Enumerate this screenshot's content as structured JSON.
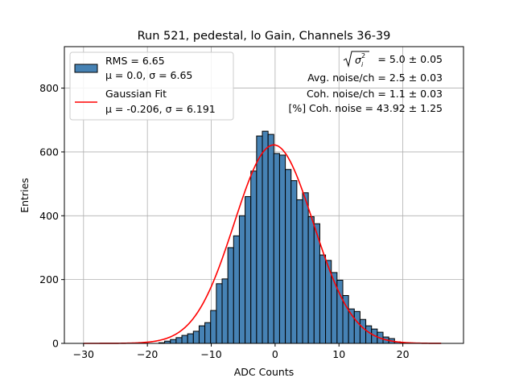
{
  "chart_data": {
    "type": "bar",
    "title": "Run 521, pedestal, lo Gain, Channels 36-39",
    "xlabel": "ADC Counts",
    "ylabel": "Entries",
    "xlim": [
      -33,
      29.5
    ],
    "ylim": [
      0,
      930
    ],
    "grid": true,
    "legend_position": "top-left",
    "x_ticks": [
      -30,
      -20,
      -10,
      0,
      10,
      20
    ],
    "y_ticks": [
      0,
      200,
      400,
      600,
      800
    ],
    "histogram": {
      "bin_width": 0.9,
      "bin_starts": [
        -18.2,
        -17.3,
        -16.4,
        -15.5,
        -14.6,
        -13.7,
        -12.8,
        -11.9,
        -11.0,
        -10.1,
        -9.2,
        -8.3,
        -7.4,
        -6.5,
        -5.6,
        -4.7,
        -3.8,
        -2.9,
        -2.0,
        -1.1,
        -0.2,
        0.7,
        1.6,
        2.5,
        3.4,
        4.3,
        5.2,
        6.1,
        7.0,
        7.9,
        8.8,
        9.7,
        10.6,
        11.5,
        12.4,
        13.3,
        14.2,
        15.1,
        16.0,
        16.9,
        17.8,
        18.7,
        19.6,
        20.5
      ],
      "values": [
        2,
        7,
        12,
        18,
        25,
        30,
        38,
        55,
        65,
        103,
        187,
        202,
        300,
        337,
        400,
        460,
        540,
        650,
        665,
        655,
        595,
        590,
        545,
        510,
        450,
        472,
        397,
        375,
        277,
        260,
        222,
        198,
        150,
        108,
        100,
        75,
        55,
        45,
        35,
        20,
        15,
        5,
        2,
        1
      ],
      "fill_color": "#4682b4",
      "edge_color": "#000000"
    },
    "series": [
      {
        "name": "RMS = 6.65\nμ = 0.0, σ = 6.65",
        "type": "histogram",
        "color": "#4682b4"
      },
      {
        "name": "Gaussian Fit\nμ = -0.206, σ = 6.191",
        "type": "line",
        "color": "#ff0000",
        "mu": -0.206,
        "sigma": 6.191,
        "amplitude": 622,
        "x_range": [
          -30,
          26
        ]
      }
    ],
    "legend": {
      "entries": [
        {
          "line1": "RMS = 6.65",
          "line2": "μ = 0.0, σ = 6.65"
        },
        {
          "line1": "Gaussian Fit",
          "line2": "μ = -0.206, σ = 6.191"
        }
      ]
    },
    "annotations": [
      "= 5.0 ± 0.05",
      "Avg. noise/ch = 2.5 ± 0.03",
      "Coh. noise/ch = 1.1 ± 0.03",
      "[%] Coh. noise = 43.92 ± 1.25"
    ]
  }
}
